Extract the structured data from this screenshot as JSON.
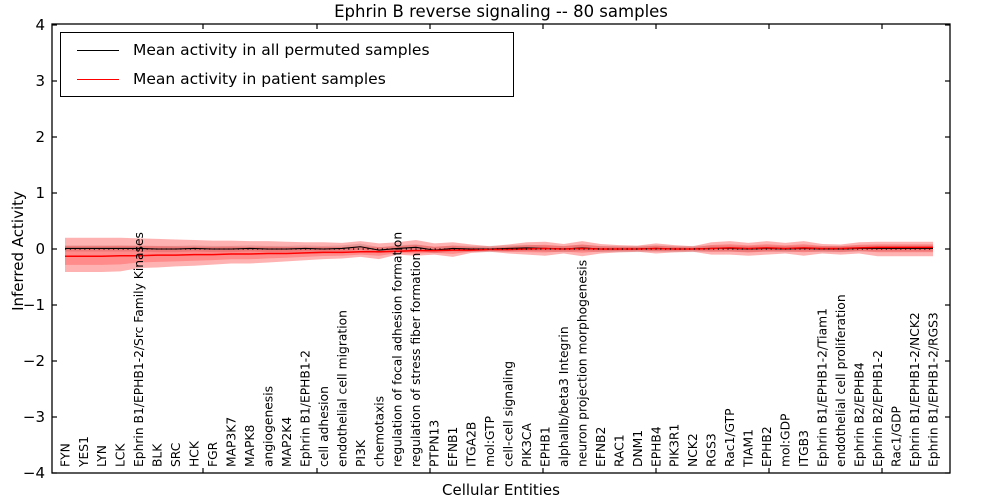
{
  "title": "Ephrin B reverse signaling -- 80 samples",
  "legend": {
    "items": [
      {
        "label": "Mean activity in all permuted samples",
        "color": "#000000"
      },
      {
        "label": "Mean activity in patient samples",
        "color": "#ff0000"
      }
    ],
    "position": "upper left"
  },
  "chart_data": {
    "type": "line",
    "title": "Ephrin B reverse signaling -- 80 samples",
    "xlabel": "Cellular Entities",
    "ylabel": "Inferred Activity",
    "ylim": [
      -4,
      4
    ],
    "ytick_values": [
      4,
      3,
      2,
      1,
      0,
      -1,
      -2,
      -3,
      -4
    ],
    "ytick_labels": [
      "4",
      "3",
      "2",
      "1",
      "0",
      "−1",
      "−2",
      "−3",
      "−4"
    ],
    "grid": false,
    "legend_position": "upper left",
    "zero_line": {
      "value": 0,
      "style": "dotted",
      "color": "#000000"
    },
    "categories": [
      "FYN",
      "YES1",
      "LYN",
      "LCK",
      "Ephrin B1/EPHB1-2/Src Family Kinases",
      "BLK",
      "SRC",
      "HCK",
      "FGR",
      "MAP3K7",
      "MAPK8",
      "angiogenesis",
      "MAP2K4",
      "Ephrin B1/EPHB1-2",
      "cell adhesion",
      "endothelial cell migration",
      "PI3K",
      "chemotaxis",
      "regulation of focal adhesion formation",
      "regulation of stress fiber formation",
      "PTPN13",
      "EFNB1",
      "ITGA2B",
      "mol:GTP",
      "cell-cell signaling",
      "PIK3CA",
      "EPHB1",
      "alphaIIb/beta3 Integrin",
      "neuron projection morphogenesis",
      "EFNB2",
      "RAC1",
      "DNM1",
      "EPHB4",
      "PIK3R1",
      "NCK2",
      "RGS3",
      "Rac1/GTP",
      "TIAM1",
      "EPHB2",
      "mol:GDP",
      "ITGB3",
      "Ephrin B1/EPHB1-2/Tiam1",
      "endothelial cell proliferation",
      "Ephrin B2/EPHB4",
      "Ephrin B2/EPHB1-2",
      "Rac1/GDP",
      "Ephrin B1/EPHB1-2/NCK2",
      "Ephrin B1/EPHB1-2/RGS3"
    ],
    "series": [
      {
        "name": "Mean activity in all permuted samples",
        "color": "#000000",
        "values": [
          0.01,
          0.01,
          0.01,
          0.01,
          0.01,
          0.0,
          0.0,
          0.01,
          0.0,
          0.0,
          0.01,
          0.0,
          0.0,
          0.01,
          0.0,
          0.01,
          0.04,
          -0.02,
          0.01,
          0.03,
          -0.02,
          0.01,
          0.0,
          0.0,
          0.01,
          0.02,
          0.01,
          0.0,
          0.02,
          0.0,
          0.0,
          0.0,
          0.01,
          0.0,
          0.0,
          0.01,
          0.01,
          0.0,
          0.01,
          0.0,
          0.01,
          0.0,
          0.0,
          0.01,
          0.01,
          0.01,
          0.01,
          0.01
        ]
      },
      {
        "name": "Mean activity in patient samples",
        "color": "#ff0000",
        "values": [
          -0.13,
          -0.13,
          -0.13,
          -0.12,
          -0.12,
          -0.11,
          -0.11,
          -0.1,
          -0.1,
          -0.09,
          -0.09,
          -0.08,
          -0.08,
          -0.07,
          -0.06,
          -0.06,
          -0.05,
          -0.05,
          -0.04,
          -0.03,
          -0.03,
          -0.02,
          -0.02,
          -0.01,
          -0.01,
          0.0,
          0.01,
          0.0,
          0.01,
          0.0,
          0.0,
          0.0,
          0.01,
          0.0,
          0.0,
          0.01,
          0.02,
          0.01,
          0.02,
          0.01,
          0.02,
          0.01,
          0.01,
          0.02,
          0.03,
          0.03,
          0.03,
          0.03
        ]
      }
    ],
    "bands": {
      "patient_outer": {
        "hi": [
          0.2,
          0.2,
          0.2,
          0.2,
          0.19,
          0.18,
          0.17,
          0.16,
          0.15,
          0.15,
          0.14,
          0.14,
          0.13,
          0.12,
          0.12,
          0.11,
          0.14,
          0.1,
          0.12,
          0.16,
          0.1,
          0.12,
          0.08,
          0.05,
          0.08,
          0.12,
          0.13,
          0.09,
          0.14,
          0.09,
          0.07,
          0.06,
          0.1,
          0.07,
          0.05,
          0.12,
          0.14,
          0.11,
          0.14,
          0.11,
          0.14,
          0.09,
          0.08,
          0.12,
          0.13,
          0.13,
          0.13,
          0.13
        ],
        "lo": [
          -0.41,
          -0.41,
          -0.41,
          -0.4,
          -0.34,
          -0.33,
          -0.31,
          -0.3,
          -0.28,
          -0.26,
          -0.26,
          -0.24,
          -0.22,
          -0.2,
          -0.18,
          -0.17,
          -0.14,
          -0.18,
          -0.1,
          -0.12,
          -0.1,
          -0.14,
          -0.07,
          -0.05,
          -0.08,
          -0.1,
          -0.12,
          -0.08,
          -0.13,
          -0.08,
          -0.06,
          -0.05,
          -0.08,
          -0.06,
          -0.05,
          -0.1,
          -0.1,
          -0.12,
          -0.1,
          -0.08,
          -0.12,
          -0.08,
          -0.1,
          -0.08,
          -0.13,
          -0.13,
          -0.13,
          -0.13
        ],
        "color": "rgba(255,0,0,0.30)"
      },
      "patient_inner_ratio": 0.55,
      "patient_inner_color": "rgba(255,0,0,0.22)",
      "permuted": {
        "halfwidth": 0.055,
        "color": "rgba(80,80,80,0.18)"
      }
    }
  }
}
